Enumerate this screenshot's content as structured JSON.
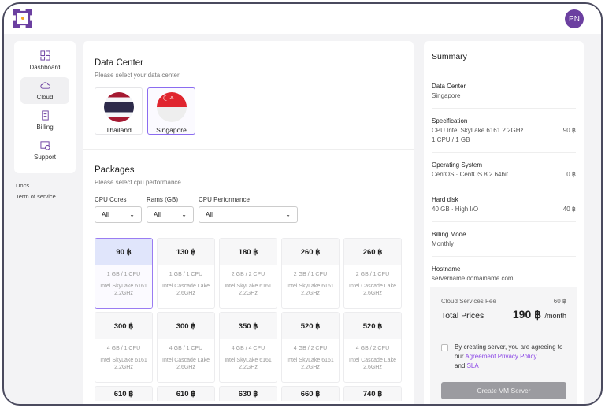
{
  "header": {
    "avatar": "PN"
  },
  "sidebar": {
    "items": [
      {
        "label": "Dashboard",
        "icon": "dashboard-icon"
      },
      {
        "label": "Cloud",
        "icon": "cloud-icon",
        "active": true
      },
      {
        "label": "Billing",
        "icon": "billing-icon"
      },
      {
        "label": "Support",
        "icon": "support-icon"
      }
    ],
    "links": [
      "Docs",
      "Term of service"
    ]
  },
  "datacenter": {
    "title": "Data Center",
    "subtitle": "Please select your data center",
    "options": [
      {
        "label": "Thailand"
      },
      {
        "label": "Singapore",
        "selected": true
      }
    ]
  },
  "packages": {
    "title": "Packages",
    "subtitle": "Please select cpu performance.",
    "filters": [
      {
        "label": "CPU Cores",
        "value": "All"
      },
      {
        "label": "Rams (GB)",
        "value": "All"
      },
      {
        "label": "CPU Performance",
        "value": "All"
      }
    ],
    "items": [
      {
        "price": "90 ฿",
        "spec": "1 GB / 1 CPU",
        "cpu": "Intel SkyLake 6161",
        "ghz": "2.2GHz",
        "selected": true
      },
      {
        "price": "130 ฿",
        "spec": "1 GB / 1 CPU",
        "cpu": "Intel Cascade Lake",
        "ghz": "2.6GHz"
      },
      {
        "price": "180 ฿",
        "spec": "2 GB / 2 CPU",
        "cpu": "Intel SkyLake 6161",
        "ghz": "2.2GHz"
      },
      {
        "price": "260 ฿",
        "spec": "2 GB / 1 CPU",
        "cpu": "Intel SkyLake 6161",
        "ghz": "2.2GHz"
      },
      {
        "price": "260 ฿",
        "spec": "2 GB / 1 CPU",
        "cpu": "Intel Cascade Lake",
        "ghz": "2.6GHz"
      },
      {
        "price": "300 ฿",
        "spec": "4 GB / 1 CPU",
        "cpu": "Intel SkyLake 6161",
        "ghz": "2.2GHz"
      },
      {
        "price": "300 ฿",
        "spec": "4 GB / 1 CPU",
        "cpu": "Intel Cascade Lake",
        "ghz": "2.6GHz"
      },
      {
        "price": "350 ฿",
        "spec": "4 GB / 4 CPU",
        "cpu": "Intel SkyLake 6161",
        "ghz": "2.2GHz"
      },
      {
        "price": "520 ฿",
        "spec": "4 GB / 2 CPU",
        "cpu": "Intel SkyLake 6161",
        "ghz": "2.2GHz"
      },
      {
        "price": "520 ฿",
        "spec": "4 GB / 2 CPU",
        "cpu": "Intel Cascade Lake",
        "ghz": "2.6GHz"
      },
      {
        "price": "610 ฿"
      },
      {
        "price": "610 ฿"
      },
      {
        "price": "630 ฿"
      },
      {
        "price": "660 ฿"
      },
      {
        "price": "740 ฿"
      }
    ]
  },
  "summary": {
    "title": "Summary",
    "sections": [
      {
        "title": "Data Center",
        "lines": [
          {
            "text": "Singapore",
            "price": ""
          }
        ]
      },
      {
        "title": "Specification",
        "lines": [
          {
            "text": "CPU Intel SkyLake 6161 2.2GHz",
            "price": "90 ฿"
          },
          {
            "text": "1 CPU  /  1 GB",
            "price": ""
          }
        ]
      },
      {
        "title": "Operating System",
        "lines": [
          {
            "text": "CentOS  ·  CentOS 8.2 64bit",
            "price": "0 ฿"
          }
        ]
      },
      {
        "title": "Hard disk",
        "lines": [
          {
            "text": "40 GB  ·  High I/O",
            "price": "40 ฿"
          }
        ]
      },
      {
        "title": "Billing Mode",
        "lines": [
          {
            "text": "Monthly",
            "price": ""
          }
        ]
      },
      {
        "title": "Hostname",
        "lines": [
          {
            "text": "servername.domainame.com",
            "price": ""
          }
        ]
      }
    ],
    "fee_label": "Cloud Services Fee",
    "fee": "60 ฿",
    "total_label": "Total Prices",
    "total": "190 ฿",
    "per": "/month",
    "agree_text": "By creating server, you are agreeing to our",
    "agree_link1": "Agreement Privacy Policy",
    "agree_and": "and",
    "agree_link2": "SLA",
    "agreed": false,
    "create_button": "Create VM Server"
  },
  "colors": {
    "brand": "#6b3fa0",
    "accent": "#8b6cf0",
    "link": "#8a45e6"
  }
}
